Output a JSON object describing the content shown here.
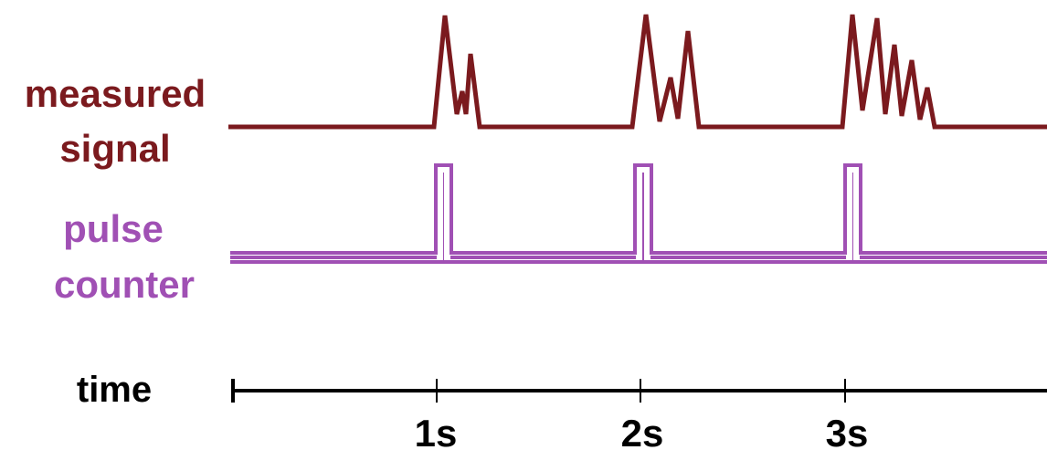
{
  "labels": {
    "measured_line1": "measured",
    "measured_line2": "signal",
    "pulse_line1": "pulse",
    "pulse_line2": "counter",
    "time": "time"
  },
  "time_ticks": [
    "1s",
    "2s",
    "3s"
  ],
  "colors": {
    "measured": "#7b1a1e",
    "pulse": "#a050b4",
    "axis": "#000000"
  }
}
